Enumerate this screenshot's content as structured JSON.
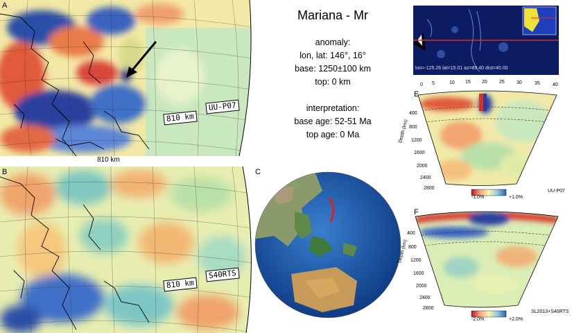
{
  "panels": {
    "A": {
      "letter": "A",
      "depth_tag": "810 km",
      "model_tag": "UU-P07",
      "caption": "810 km"
    },
    "B": {
      "letter": "B",
      "depth_tag": "810 km",
      "model_tag": "S40RTS"
    },
    "C": {
      "letter": "C"
    },
    "E": {
      "letter": "E",
      "model": "UU-P07",
      "colorbar_min": "-1.0%",
      "colorbar_max": "+1.0%",
      "dist_ticks": [
        "0",
        "5",
        "10",
        "15",
        "20",
        "25",
        "30",
        "35",
        "40"
      ],
      "depth_ticks": [
        "400",
        "800",
        "1200",
        "1600",
        "2000",
        "2400",
        "2800"
      ],
      "ylabel": "Depth (km)"
    },
    "F": {
      "letter": "F",
      "model": "SL2013+S40RTS",
      "colorbar_min": "-2.0%",
      "colorbar_max": "+2.0%",
      "depth_ticks": [
        "400",
        "800",
        "1200",
        "1600",
        "2000",
        "2400",
        "2800"
      ],
      "ylabel": "Depth (km)"
    }
  },
  "info": {
    "title": "Mariana - Mr",
    "anomaly_label": "anomaly:",
    "lonlat": "lon, lat: 146°, 16°",
    "base": "base: 1250±100 km",
    "top": "top: 0 km",
    "interp_label": "interpretation:",
    "base_age": "base age: 52-51 Ma",
    "top_age": "top age: 0 Ma"
  },
  "inset": {
    "coords": "lon=-125.26 lat=15.01 az=89.40 dist=40.00"
  },
  "colors": {
    "ocean": "#1a4f9c",
    "map_bg": "#a8d8a8",
    "red": "#d73027",
    "blue": "#2c3e99"
  }
}
